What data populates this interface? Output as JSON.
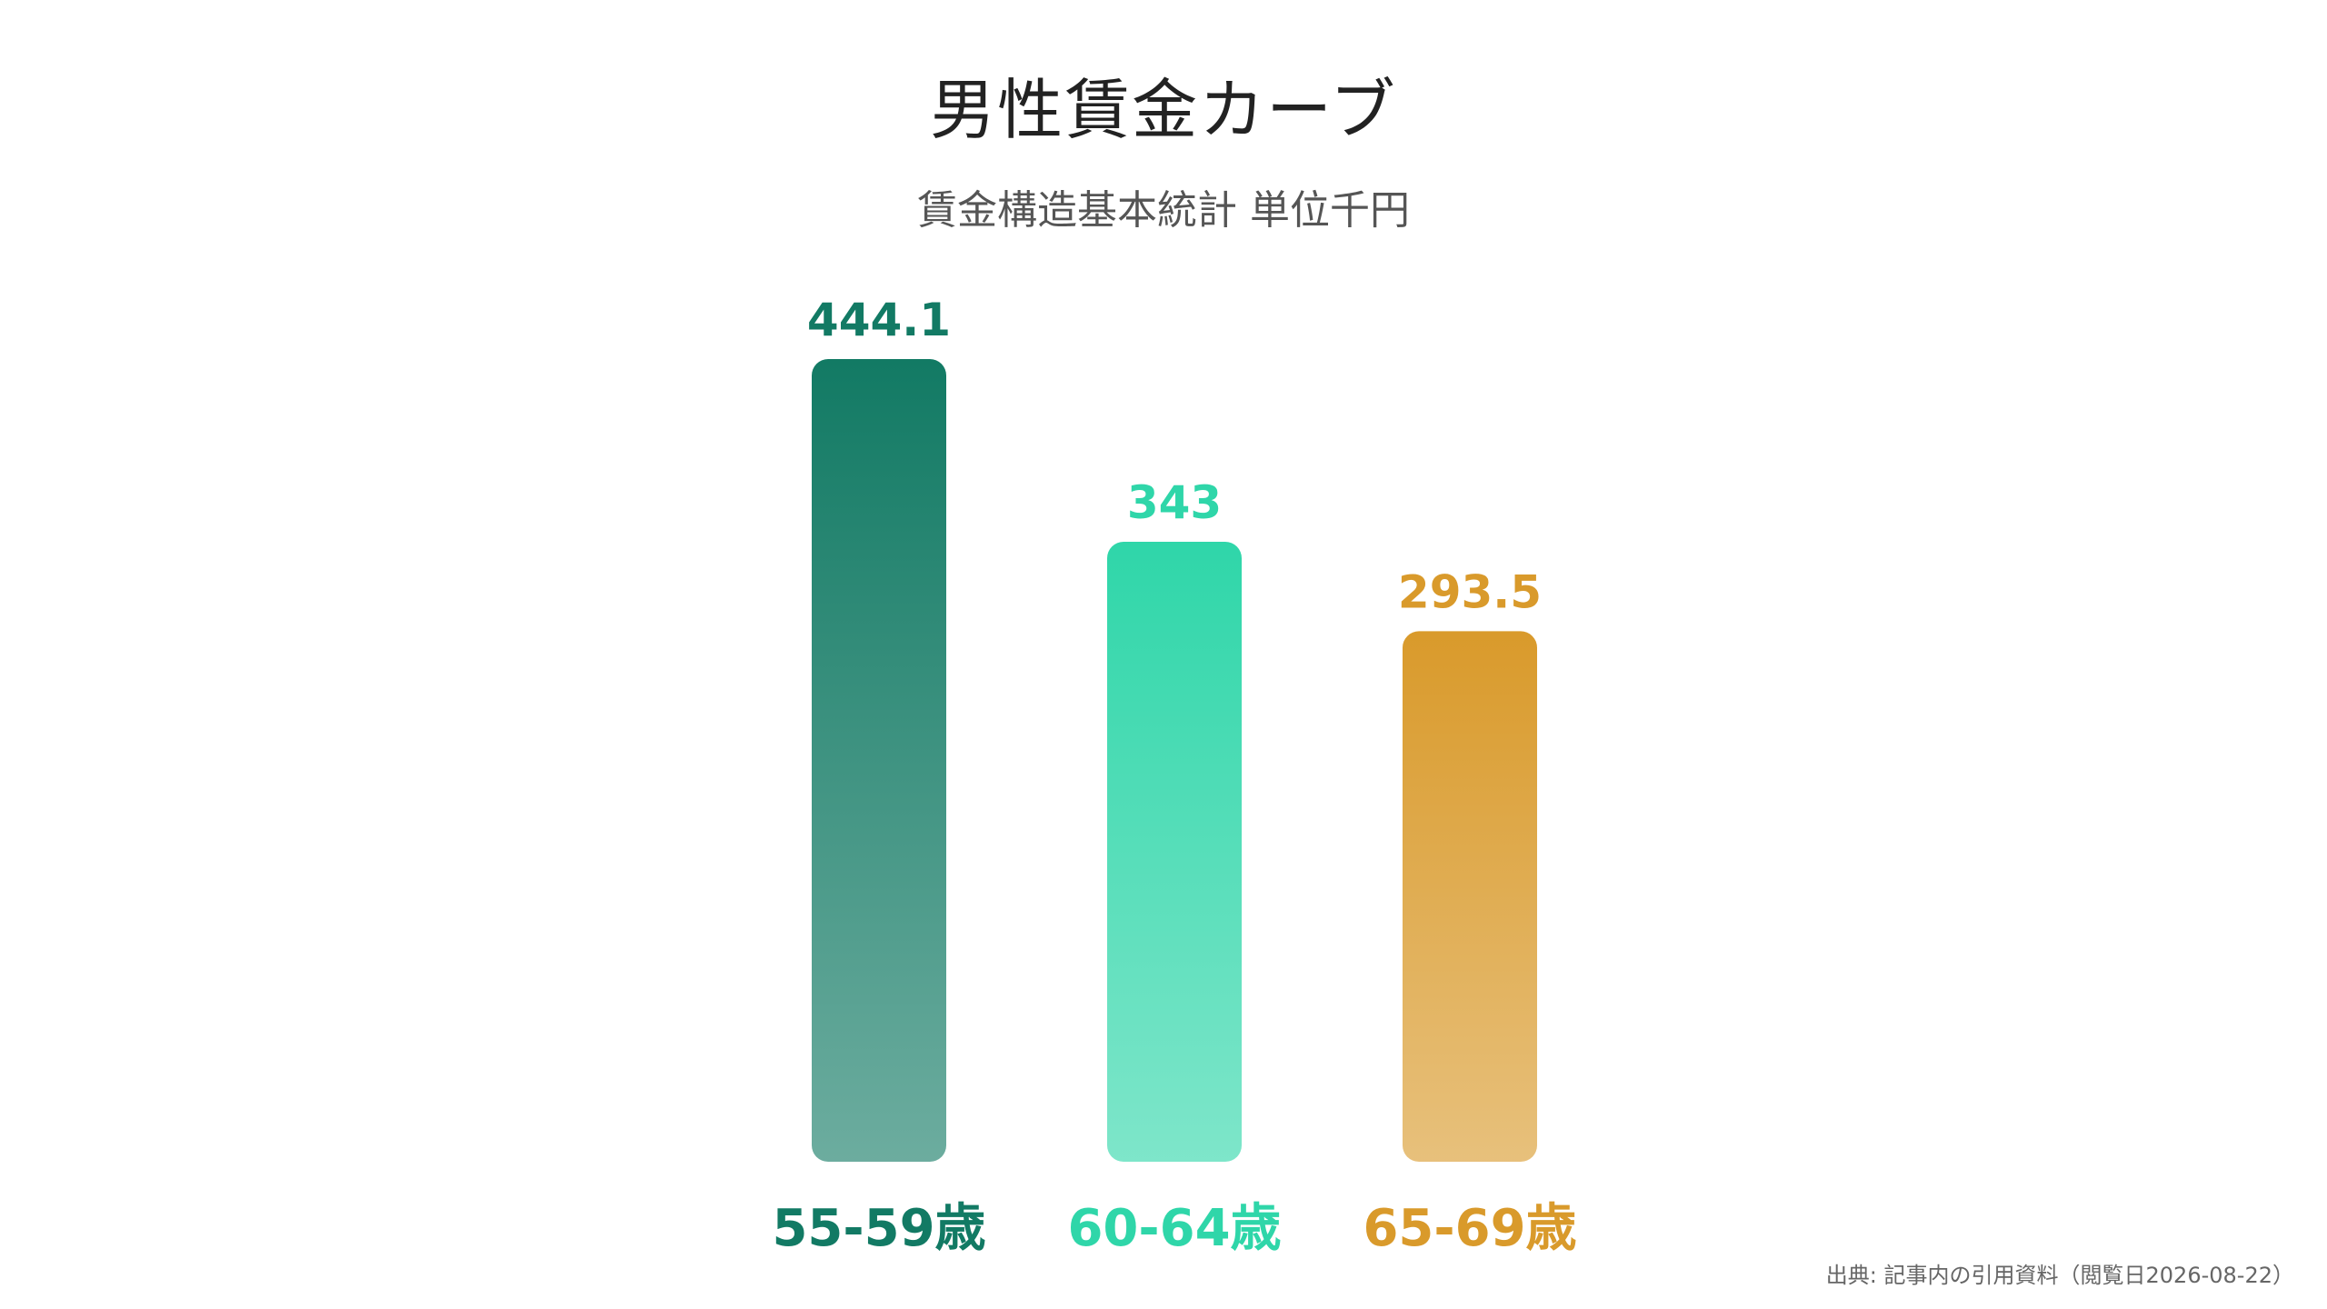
{
  "title": "男性賃金カーブ",
  "subtitle": "賃金構造基本統計 単位千円",
  "source": "出典: 記事内の引用資料（閲覧日2026-08-22）",
  "chart_data": {
    "type": "bar",
    "categories": [
      "55-59歳",
      "60-64歳",
      "65-69歳"
    ],
    "values": [
      444.1,
      343,
      293.5
    ],
    "value_labels": [
      "444.1",
      "343",
      "293.5"
    ],
    "colors": [
      "#127a64",
      "#2fd6a9",
      "#d99a2b"
    ],
    "ylim": [
      0,
      444.1
    ],
    "grid": false,
    "legend": "none"
  }
}
